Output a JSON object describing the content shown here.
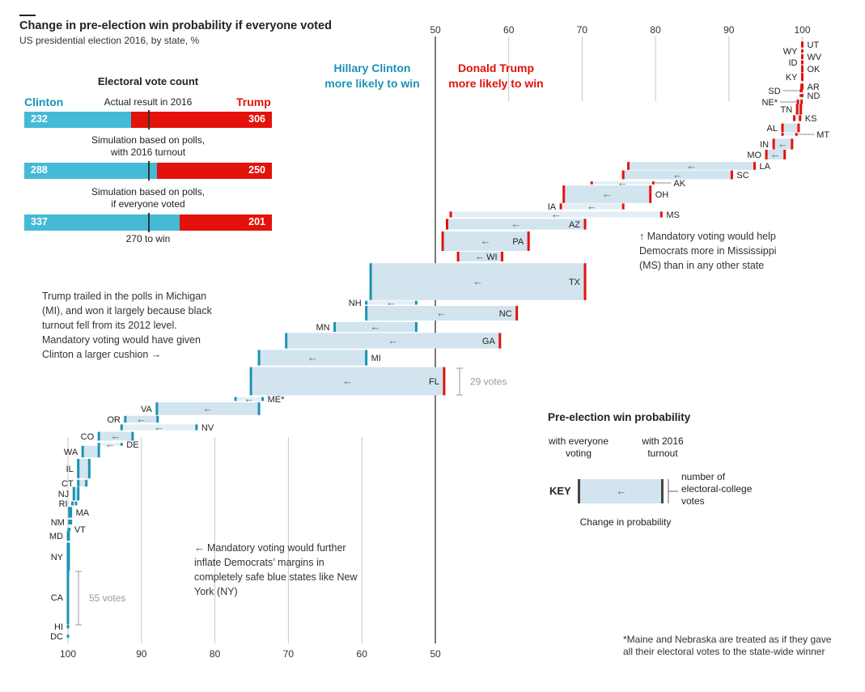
{
  "title": "Change in pre-election win probability if everyone voted",
  "subtitle": "US presidential election 2016, by state, %",
  "legend_heads": {
    "clinton": [
      "Hillary Clinton",
      "more likely to win"
    ],
    "trump": [
      "Donald Trump",
      "more likely to win"
    ]
  },
  "electoral": {
    "title": "Electoral vote count",
    "clinton_label": "Clinton",
    "trump_label": "Trump",
    "rows": [
      {
        "caption": "Actual result in 2016",
        "caption2": "",
        "clinton": 232,
        "trump": 306
      },
      {
        "caption": "Simulation based on polls,",
        "caption2": "with 2016 turnout",
        "clinton": 288,
        "trump": 250
      },
      {
        "caption": "Simulation based on polls,",
        "caption2": "if everyone voted",
        "clinton": 337,
        "trump": 201
      }
    ],
    "threshold_label": "270 to win",
    "threshold": 270,
    "total": 538
  },
  "annotations": {
    "michigan": [
      "Trump trailed in the polls in Michigan",
      "(MI), and won it largely because black",
      "turnout fell from its 2012 level.",
      "Mandatory voting would have given",
      "Clinton a larger cushion →"
    ],
    "mississippi": [
      "↑ Mandatory voting would help",
      "Democrats more in Mississippi",
      "(MS) than in any other state"
    ],
    "newyork": [
      "← Mandatory voting would further",
      "inflate Democrats’ margins in",
      "completely safe blue states like New",
      "York (NY)"
    ],
    "votes_29": "29 votes",
    "votes_55": "55 votes"
  },
  "key": {
    "title": "Pre-election win probability",
    "left_label": [
      "with everyone",
      "voting"
    ],
    "right_label": [
      "with 2016",
      "turnout"
    ],
    "side_label": [
      "number of",
      "electoral-college",
      "votes"
    ],
    "bottom_label": "Change in probability",
    "key_word": "KEY"
  },
  "footnote": [
    "*Maine and Nebraska are treated as if they gave",
    "all their electoral votes to the state-wide winner"
  ],
  "colors": {
    "clinton": "#1b93b4",
    "trump": "#e3120b",
    "clinton_bar": "#45bad6",
    "band": "#d2e4ee",
    "band_light": "#e3eef5",
    "axis": "#333333",
    "grid": "#c8c8c8"
  },
  "chart_data": {
    "type": "range-bar (dumbbell) chart",
    "top_axis": {
      "range": [
        50,
        100
      ],
      "ticks": [
        50,
        60,
        70,
        80,
        90,
        100
      ]
    },
    "bottom_axis": {
      "range": [
        50,
        100
      ],
      "ticks": [
        100,
        90,
        80,
        70,
        60,
        50
      ],
      "reversed": true
    },
    "value_field": "pre-election win probability, % (Trump probability when Trump-favoured, Clinton probability when Clinton-favoured)",
    "states": [
      {
        "state": "UT",
        "ev": 6,
        "turnout_2016": 100,
        "everyone_voted": 100,
        "favours": "trump"
      },
      {
        "state": "WY",
        "ev": 3,
        "turnout_2016": 100,
        "everyone_voted": 100,
        "favours": "trump"
      },
      {
        "state": "WV",
        "ev": 5,
        "turnout_2016": 100,
        "everyone_voted": 100,
        "favours": "trump"
      },
      {
        "state": "ID",
        "ev": 4,
        "turnout_2016": 100,
        "everyone_voted": 100,
        "favours": "trump"
      },
      {
        "state": "OK",
        "ev": 7,
        "turnout_2016": 100,
        "everyone_voted": 100,
        "favours": "trump"
      },
      {
        "state": "KY",
        "ev": 8,
        "turnout_2016": 100,
        "everyone_voted": 100,
        "favours": "trump"
      },
      {
        "state": "AR",
        "ev": 6,
        "turnout_2016": 100,
        "everyone_voted": 99.9,
        "favours": "trump"
      },
      {
        "state": "SD",
        "ev": 3,
        "turnout_2016": 99.9,
        "everyone_voted": 99.8,
        "favours": "trump"
      },
      {
        "state": "ND",
        "ev": 3,
        "turnout_2016": 100,
        "everyone_voted": 99.8,
        "favours": "trump"
      },
      {
        "state": "NE*",
        "ev": 5,
        "turnout_2016": 99.9,
        "everyone_voted": 99.4,
        "favours": "trump"
      },
      {
        "state": "TN",
        "ev": 11,
        "turnout_2016": 99.8,
        "everyone_voted": 99.3,
        "favours": "trump"
      },
      {
        "state": "KS",
        "ev": 6,
        "turnout_2016": 99.7,
        "everyone_voted": 98.9,
        "favours": "trump"
      },
      {
        "state": "AL",
        "ev": 9,
        "turnout_2016": 99.5,
        "everyone_voted": 97.3,
        "favours": "trump"
      },
      {
        "state": "MT",
        "ev": 3,
        "turnout_2016": 99.2,
        "everyone_voted": 97.3,
        "favours": "trump"
      },
      {
        "state": "IN",
        "ev": 11,
        "turnout_2016": 98.6,
        "everyone_voted": 96.1,
        "favours": "trump"
      },
      {
        "state": "MO",
        "ev": 10,
        "turnout_2016": 97.6,
        "everyone_voted": 95.1,
        "favours": "trump"
      },
      {
        "state": "LA",
        "ev": 8,
        "turnout_2016": 93.5,
        "everyone_voted": 76.3,
        "favours": "trump"
      },
      {
        "state": "SC",
        "ev": 9,
        "turnout_2016": 90.4,
        "everyone_voted": 75.6,
        "favours": "trump"
      },
      {
        "state": "AK",
        "ev": 3,
        "turnout_2016": 79.7,
        "everyone_voted": 71.3,
        "favours": "trump"
      },
      {
        "state": "OH",
        "ev": 18,
        "turnout_2016": 79.3,
        "everyone_voted": 67.5,
        "favours": "trump"
      },
      {
        "state": "IA",
        "ev": 6,
        "turnout_2016": 75.6,
        "everyone_voted": 67.1,
        "favours": "trump"
      },
      {
        "state": "MS",
        "ev": 6,
        "turnout_2016": 80.8,
        "everyone_voted": 52.1,
        "favours": "trump"
      },
      {
        "state": "AZ",
        "ev": 11,
        "turnout_2016": 70.4,
        "everyone_voted": 51.6,
        "favours": "trump"
      },
      {
        "state": "PA",
        "ev": 20,
        "turnout_2016": 62.7,
        "everyone_voted": 51.0,
        "favours": "trump"
      },
      {
        "state": "WI",
        "ev": 10,
        "turnout_2016": 59.1,
        "everyone_voted": 53.1,
        "favours": "trump"
      },
      {
        "state": "TX",
        "ev": 38,
        "turnout_2016": 70.4,
        "everyone_voted": 58.8,
        "favours": "both"
      },
      {
        "state": "NH",
        "ev": 4,
        "turnout_2016": 52.6,
        "everyone_voted": 59.4,
        "favours": "clinton"
      },
      {
        "state": "NC",
        "ev": 15,
        "turnout_2016": 61.1,
        "everyone_voted": 59.4,
        "favours": "both"
      },
      {
        "state": "MN",
        "ev": 10,
        "turnout_2016": 52.6,
        "everyone_voted": 63.7,
        "favours": "clinton"
      },
      {
        "state": "GA",
        "ev": 16,
        "turnout_2016": 58.8,
        "everyone_voted": 70.3,
        "favours": "both"
      },
      {
        "state": "MI",
        "ev": 16,
        "turnout_2016": 59.4,
        "everyone_voted": 74.0,
        "favours": "clinton"
      },
      {
        "state": "FL",
        "ev": 29,
        "turnout_2016": 51.2,
        "everyone_voted": 75.1,
        "favours": "both"
      },
      {
        "state": "ME*",
        "ev": 4,
        "turnout_2016": 73.5,
        "everyone_voted": 77.2,
        "favours": "clinton"
      },
      {
        "state": "VA",
        "ev": 13,
        "turnout_2016": 74.0,
        "everyone_voted": 87.9,
        "favours": "clinton"
      },
      {
        "state": "OR",
        "ev": 7,
        "turnout_2016": 87.8,
        "everyone_voted": 92.2,
        "favours": "clinton"
      },
      {
        "state": "NV",
        "ev": 6,
        "turnout_2016": 82.5,
        "everyone_voted": 92.7,
        "favours": "clinton"
      },
      {
        "state": "CO",
        "ev": 9,
        "turnout_2016": 91.2,
        "everyone_voted": 95.8,
        "favours": "clinton"
      },
      {
        "state": "DE",
        "ev": 3,
        "turnout_2016": 92.7,
        "everyone_voted": 95.8,
        "favours": "clinton"
      },
      {
        "state": "WA",
        "ev": 12,
        "turnout_2016": 95.8,
        "everyone_voted": 98.0,
        "favours": "clinton"
      },
      {
        "state": "IL",
        "ev": 20,
        "turnout_2016": 97.1,
        "everyone_voted": 98.6,
        "favours": "clinton"
      },
      {
        "state": "CT",
        "ev": 7,
        "turnout_2016": 97.5,
        "everyone_voted": 98.6,
        "favours": "clinton"
      },
      {
        "state": "NJ",
        "ev": 14,
        "turnout_2016": 98.6,
        "everyone_voted": 99.2,
        "favours": "clinton"
      },
      {
        "state": "RI",
        "ev": 4,
        "turnout_2016": 98.9,
        "everyone_voted": 99.4,
        "favours": "clinton"
      },
      {
        "state": "MA",
        "ev": 11,
        "turnout_2016": 99.6,
        "everyone_voted": 99.8,
        "favours": "clinton"
      },
      {
        "state": "NM",
        "ev": 5,
        "turnout_2016": 99.6,
        "everyone_voted": 99.8,
        "favours": "clinton"
      },
      {
        "state": "VT",
        "ev": 3,
        "turnout_2016": 99.8,
        "everyone_voted": 99.9,
        "favours": "clinton"
      },
      {
        "state": "MD",
        "ev": 10,
        "turnout_2016": 99.9,
        "everyone_voted": 100,
        "favours": "clinton"
      },
      {
        "state": "NY",
        "ev": 29,
        "turnout_2016": 99.9,
        "everyone_voted": 100,
        "favours": "clinton"
      },
      {
        "state": "CA",
        "ev": 55,
        "turnout_2016": 100,
        "everyone_voted": 100,
        "favours": "clinton"
      },
      {
        "state": "HI",
        "ev": 4,
        "turnout_2016": 100,
        "everyone_voted": 100,
        "favours": "clinton"
      },
      {
        "state": "DC",
        "ev": 3,
        "turnout_2016": 100,
        "everyone_voted": 100,
        "favours": "clinton"
      }
    ]
  }
}
